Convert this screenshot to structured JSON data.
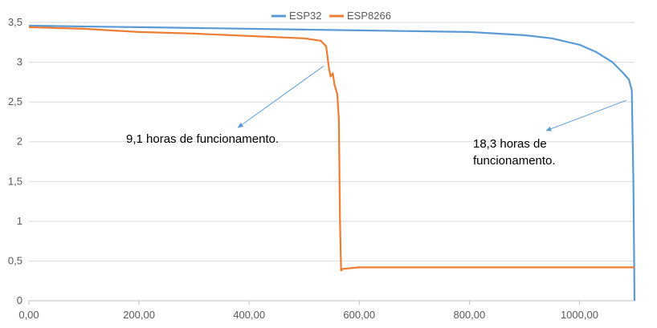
{
  "chart_data": {
    "type": "line",
    "title": "",
    "xlabel": "",
    "ylabel": "",
    "xlim": [
      0,
      1100
    ],
    "ylim": [
      0,
      3.5
    ],
    "grid": "horizontal",
    "legend_position": "top-center",
    "x_tick_values": [
      0,
      200,
      400,
      600,
      800,
      1000
    ],
    "x_tick_labels": [
      "0,00",
      "200,00",
      "400,00",
      "600,00",
      "800,00",
      "1000,00"
    ],
    "y_tick_values": [
      0,
      0.5,
      1,
      1.5,
      2,
      2.5,
      3,
      3.5
    ],
    "y_tick_labels": [
      "0",
      "0,5",
      "1",
      "1,5",
      "2",
      "2,5",
      "3",
      "3,5"
    ],
    "series": [
      {
        "name": "ESP32",
        "color": "#5b9bd5",
        "x": [
          0,
          100,
          200,
          300,
          400,
          500,
          600,
          700,
          800,
          900,
          950,
          1000,
          1030,
          1060,
          1080,
          1090,
          1095,
          1098,
          1100
        ],
        "y": [
          3.46,
          3.45,
          3.44,
          3.43,
          3.42,
          3.41,
          3.4,
          3.39,
          3.38,
          3.34,
          3.3,
          3.22,
          3.13,
          3.0,
          2.86,
          2.78,
          2.65,
          1.5,
          0
        ]
      },
      {
        "name": "ESP8266",
        "color": "#ed7d31",
        "x": [
          0,
          100,
          200,
          300,
          400,
          500,
          530,
          540,
          545,
          548,
          552,
          555,
          560,
          563,
          565,
          567,
          570,
          600,
          700,
          800,
          900,
          1000,
          1100
        ],
        "y": [
          3.44,
          3.42,
          3.38,
          3.36,
          3.33,
          3.3,
          3.27,
          3.2,
          2.92,
          2.82,
          2.86,
          2.72,
          2.6,
          2.28,
          1.0,
          0.38,
          0.4,
          0.42,
          0.42,
          0.42,
          0.42,
          0.42,
          0.42
        ]
      }
    ],
    "annotations": [
      {
        "lines": [
          "9,1 horas de funcionamento."
        ],
        "arrow_from": [
          535,
          2.95
        ],
        "arrow_to": [
          380,
          2.18
        ]
      },
      {
        "lines": [
          "18,3 horas de",
          "funcionamento."
        ],
        "arrow_from": [
          1085,
          2.52
        ],
        "arrow_to": [
          940,
          2.14
        ]
      }
    ]
  }
}
